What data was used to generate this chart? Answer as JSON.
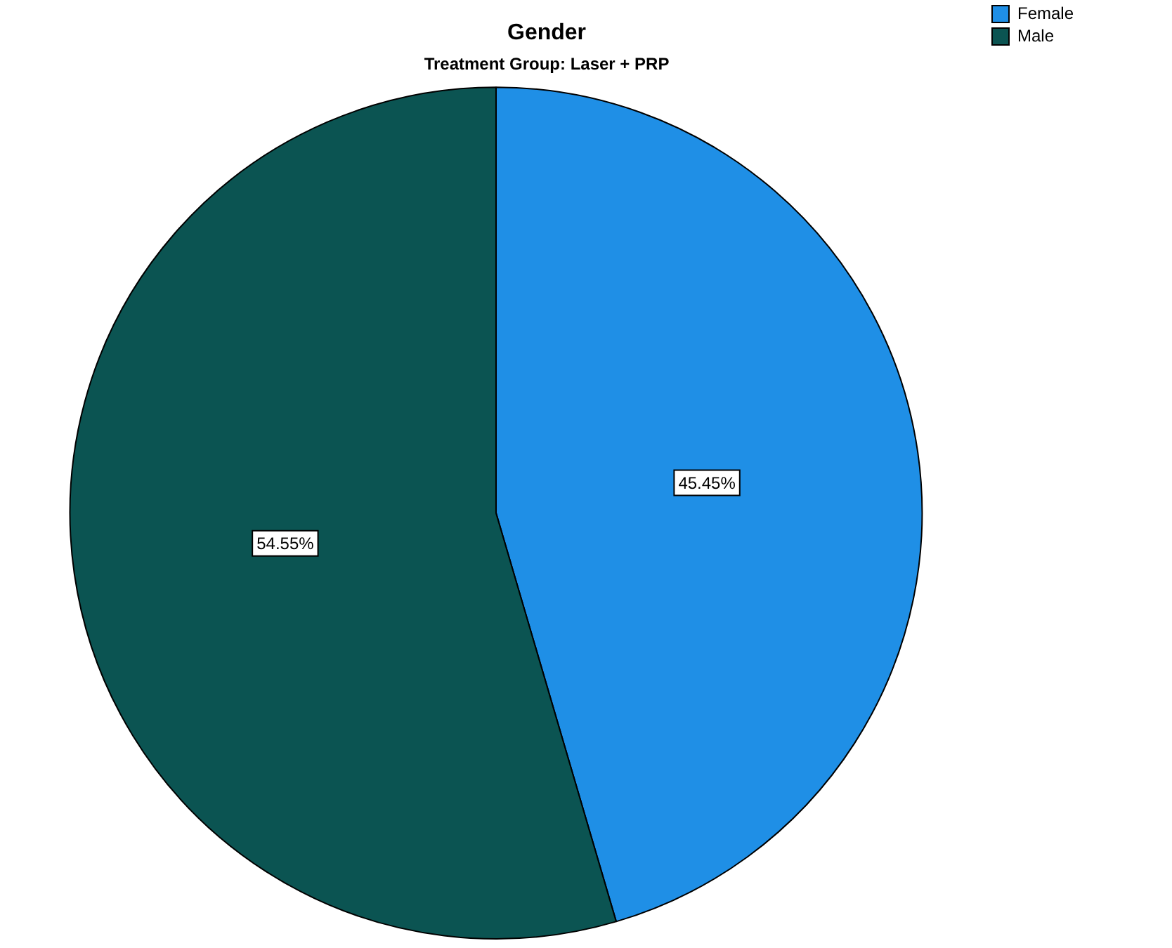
{
  "chart_data": {
    "type": "pie",
    "title": "Gender",
    "subtitle": "Treatment Group: Laser + PRP",
    "categories": [
      "Female",
      "Male"
    ],
    "values": [
      45.45,
      54.55
    ],
    "colors": [
      "#1f8fe6",
      "#0b5452"
    ],
    "value_labels": [
      "45.45%",
      "54.55%"
    ],
    "legend": "top right"
  }
}
